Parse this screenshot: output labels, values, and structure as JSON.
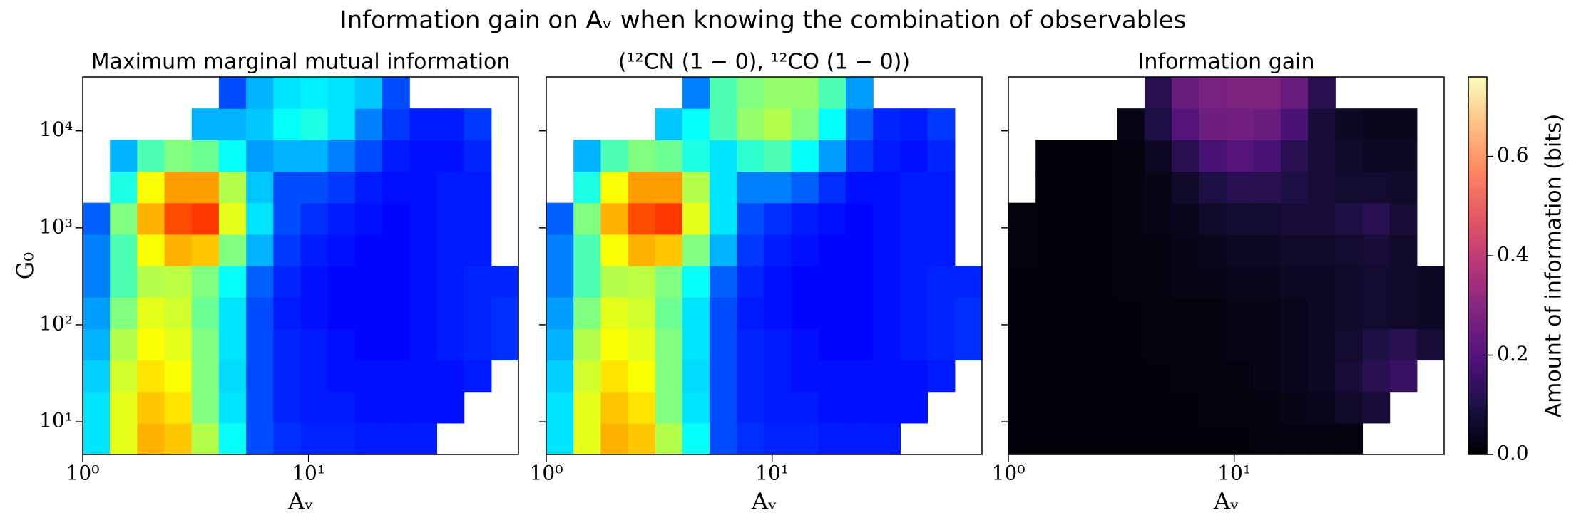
{
  "title": "Information gain on Aᵥ when knowing the combination of observables",
  "chart_data": [
    {
      "type": "heatmap",
      "title": "Maximum marginal mutual information",
      "xlabel": "Aᵥ",
      "ylabel": "G₀",
      "xscale": "log",
      "yscale": "log",
      "xlim": [
        1,
        85
      ],
      "ylim": [
        4.6,
        36000
      ],
      "xticks": [
        {
          "value": 1,
          "label": "10⁰"
        },
        {
          "value": 10,
          "label": "10¹"
        }
      ],
      "yticks": [
        {
          "value": 10,
          "label": "10¹"
        },
        {
          "value": 100,
          "label": "10²"
        },
        {
          "value": 1000,
          "label": "10³"
        },
        {
          "value": 10000,
          "label": "10⁴"
        }
      ],
      "colormap": "jet",
      "clim": [
        0,
        1
      ],
      "z": [
        [
          0.35,
          0.6,
          0.7,
          0.68,
          0.55,
          0.38,
          0.2,
          0.17,
          0.16,
          0.16,
          0.15,
          0.15,
          0.15,
          null,
          null,
          null
        ],
        [
          0.35,
          0.6,
          0.68,
          0.65,
          0.5,
          0.35,
          0.2,
          0.16,
          0.15,
          0.15,
          0.14,
          0.14,
          0.14,
          0.14,
          null,
          null
        ],
        [
          0.33,
          0.58,
          0.65,
          0.62,
          0.5,
          0.34,
          0.2,
          0.16,
          0.15,
          0.14,
          0.14,
          0.14,
          0.14,
          0.14,
          0.15,
          null
        ],
        [
          0.3,
          0.55,
          0.62,
          0.6,
          0.5,
          0.35,
          0.2,
          0.16,
          0.15,
          0.14,
          0.13,
          0.13,
          0.14,
          0.15,
          0.16,
          0.17
        ],
        [
          0.28,
          0.5,
          0.6,
          0.58,
          0.48,
          0.35,
          0.2,
          0.15,
          0.14,
          0.13,
          0.13,
          0.13,
          0.14,
          0.15,
          0.16,
          0.17
        ],
        [
          0.25,
          0.45,
          0.55,
          0.56,
          0.5,
          0.38,
          0.22,
          0.16,
          0.14,
          0.13,
          0.13,
          0.13,
          0.14,
          0.15,
          0.16,
          0.16
        ],
        [
          0.25,
          0.45,
          0.62,
          0.7,
          0.68,
          0.5,
          0.3,
          0.18,
          0.15,
          0.14,
          0.13,
          0.13,
          0.14,
          0.15,
          0.15,
          null
        ],
        [
          0.22,
          0.5,
          0.7,
          0.8,
          0.82,
          0.6,
          0.35,
          0.2,
          0.17,
          0.15,
          0.14,
          0.13,
          0.14,
          0.15,
          0.15,
          null
        ],
        [
          null,
          0.4,
          0.62,
          0.72,
          0.72,
          0.55,
          0.32,
          0.2,
          0.2,
          0.18,
          0.15,
          0.14,
          0.14,
          0.15,
          0.15,
          null
        ],
        [
          null,
          0.3,
          0.45,
          0.5,
          0.48,
          0.38,
          0.28,
          0.3,
          0.3,
          0.25,
          0.2,
          0.15,
          0.14,
          0.14,
          0.16,
          null
        ],
        [
          null,
          null,
          null,
          null,
          0.3,
          0.3,
          0.32,
          0.38,
          0.4,
          0.35,
          0.25,
          0.18,
          0.15,
          0.15,
          0.18,
          null
        ],
        [
          null,
          null,
          null,
          null,
          null,
          0.2,
          0.3,
          0.35,
          0.36,
          0.35,
          0.32,
          0.2,
          null,
          null,
          null,
          null
        ]
      ]
    },
    {
      "type": "heatmap",
      "title": "(¹²CN (1 − 0), ¹²CO (1 − 0))",
      "xlabel": "Aᵥ",
      "xscale": "log",
      "yscale": "log",
      "xlim": [
        1,
        85
      ],
      "ylim": [
        4.6,
        36000
      ],
      "xticks": [
        {
          "value": 1,
          "label": "10⁰"
        },
        {
          "value": 10,
          "label": "10¹"
        }
      ],
      "colormap": "jet",
      "clim": [
        0,
        1
      ],
      "z": [
        [
          0.35,
          0.6,
          0.7,
          0.68,
          0.55,
          0.38,
          0.2,
          0.17,
          0.16,
          0.16,
          0.15,
          0.15,
          0.15,
          null,
          null,
          null
        ],
        [
          0.35,
          0.6,
          0.68,
          0.65,
          0.5,
          0.35,
          0.2,
          0.16,
          0.15,
          0.15,
          0.14,
          0.14,
          0.14,
          0.14,
          null,
          null
        ],
        [
          0.33,
          0.58,
          0.65,
          0.62,
          0.5,
          0.34,
          0.2,
          0.16,
          0.15,
          0.14,
          0.14,
          0.14,
          0.14,
          0.14,
          0.15,
          null
        ],
        [
          0.3,
          0.55,
          0.62,
          0.6,
          0.5,
          0.35,
          0.2,
          0.16,
          0.15,
          0.14,
          0.13,
          0.13,
          0.14,
          0.15,
          0.16,
          0.17
        ],
        [
          0.28,
          0.5,
          0.6,
          0.58,
          0.48,
          0.35,
          0.2,
          0.15,
          0.14,
          0.13,
          0.13,
          0.13,
          0.14,
          0.15,
          0.16,
          0.17
        ],
        [
          0.25,
          0.45,
          0.55,
          0.56,
          0.5,
          0.38,
          0.22,
          0.16,
          0.14,
          0.13,
          0.13,
          0.13,
          0.14,
          0.15,
          0.16,
          0.16
        ],
        [
          0.25,
          0.45,
          0.62,
          0.7,
          0.68,
          0.5,
          0.3,
          0.18,
          0.15,
          0.14,
          0.13,
          0.13,
          0.14,
          0.15,
          0.15,
          null
        ],
        [
          0.22,
          0.5,
          0.7,
          0.8,
          0.82,
          0.6,
          0.35,
          0.2,
          0.17,
          0.15,
          0.14,
          0.13,
          0.14,
          0.15,
          0.15,
          null
        ],
        [
          null,
          0.4,
          0.62,
          0.72,
          0.72,
          0.55,
          0.35,
          0.25,
          0.25,
          0.22,
          0.17,
          0.14,
          0.14,
          0.15,
          0.15,
          null
        ],
        [
          null,
          0.3,
          0.45,
          0.5,
          0.48,
          0.4,
          0.35,
          0.42,
          0.45,
          0.38,
          0.28,
          0.18,
          0.15,
          0.14,
          0.16,
          null
        ],
        [
          null,
          null,
          null,
          null,
          0.32,
          0.38,
          0.45,
          0.52,
          0.55,
          0.5,
          0.38,
          0.22,
          0.16,
          0.15,
          0.18,
          null
        ],
        [
          null,
          null,
          null,
          null,
          null,
          0.25,
          0.45,
          0.5,
          0.52,
          0.52,
          0.45,
          0.28,
          null,
          null,
          null,
          null
        ]
      ]
    },
    {
      "type": "heatmap",
      "title": "Information gain",
      "xlabel": "Aᵥ",
      "xscale": "log",
      "yscale": "log",
      "xlim": [
        1,
        85
      ],
      "ylim": [
        4.6,
        36000
      ],
      "xticks": [
        {
          "value": 1,
          "label": "10⁰"
        },
        {
          "value": 10,
          "label": "10¹"
        }
      ],
      "colormap": "magma",
      "colorbar": {
        "label": "Amount of information (bits)",
        "lim": [
          0,
          0.76
        ],
        "ticks": [
          {
            "value": 0,
            "label": "0.0"
          },
          0.2,
          0.4,
          0.6
        ]
      },
      "z": [
        [
          0.01,
          0.01,
          0.01,
          0.01,
          0.01,
          0.01,
          0.01,
          0.01,
          0.01,
          0.02,
          0.02,
          0.02,
          0.02,
          null,
          null,
          null
        ],
        [
          0.01,
          0.01,
          0.01,
          0.01,
          0.01,
          0.01,
          0.01,
          0.02,
          0.02,
          0.02,
          0.03,
          0.04,
          0.06,
          0.08,
          null,
          null
        ],
        [
          0.01,
          0.01,
          0.01,
          0.01,
          0.01,
          0.01,
          0.02,
          0.02,
          0.02,
          0.03,
          0.04,
          0.05,
          0.08,
          0.12,
          0.15,
          null
        ],
        [
          0.01,
          0.01,
          0.01,
          0.01,
          0.01,
          0.02,
          0.02,
          0.02,
          0.03,
          0.03,
          0.04,
          0.05,
          0.07,
          0.1,
          0.12,
          0.08
        ],
        [
          0.01,
          0.01,
          0.01,
          0.01,
          0.01,
          0.02,
          0.02,
          0.02,
          0.03,
          0.03,
          0.04,
          0.05,
          0.06,
          0.07,
          0.06,
          0.05
        ],
        [
          0.01,
          0.01,
          0.01,
          0.01,
          0.02,
          0.02,
          0.03,
          0.03,
          0.04,
          0.04,
          0.05,
          0.05,
          0.06,
          0.07,
          0.06,
          0.05
        ],
        [
          0.02,
          0.01,
          0.01,
          0.01,
          0.02,
          0.02,
          0.03,
          0.04,
          0.05,
          0.05,
          0.06,
          0.06,
          0.07,
          0.08,
          0.06,
          null
        ],
        [
          0.02,
          0.01,
          0.01,
          0.01,
          0.02,
          0.03,
          0.04,
          0.06,
          0.07,
          0.07,
          0.08,
          0.08,
          0.1,
          0.12,
          0.08,
          null
        ],
        [
          null,
          0.01,
          0.01,
          0.01,
          0.02,
          0.03,
          0.06,
          0.1,
          0.12,
          0.12,
          0.1,
          0.08,
          0.07,
          0.07,
          0.06,
          null
        ],
        [
          null,
          0.01,
          0.01,
          0.01,
          0.02,
          0.05,
          0.12,
          0.18,
          0.2,
          0.18,
          0.12,
          0.08,
          0.06,
          0.05,
          0.05,
          null
        ],
        [
          null,
          null,
          null,
          null,
          0.03,
          0.1,
          0.2,
          0.25,
          0.26,
          0.24,
          0.18,
          0.08,
          0.05,
          0.04,
          0.04,
          null
        ],
        [
          null,
          null,
          null,
          null,
          null,
          0.12,
          0.24,
          0.27,
          0.28,
          0.28,
          0.24,
          0.12,
          null,
          null,
          null,
          null
        ]
      ]
    }
  ]
}
